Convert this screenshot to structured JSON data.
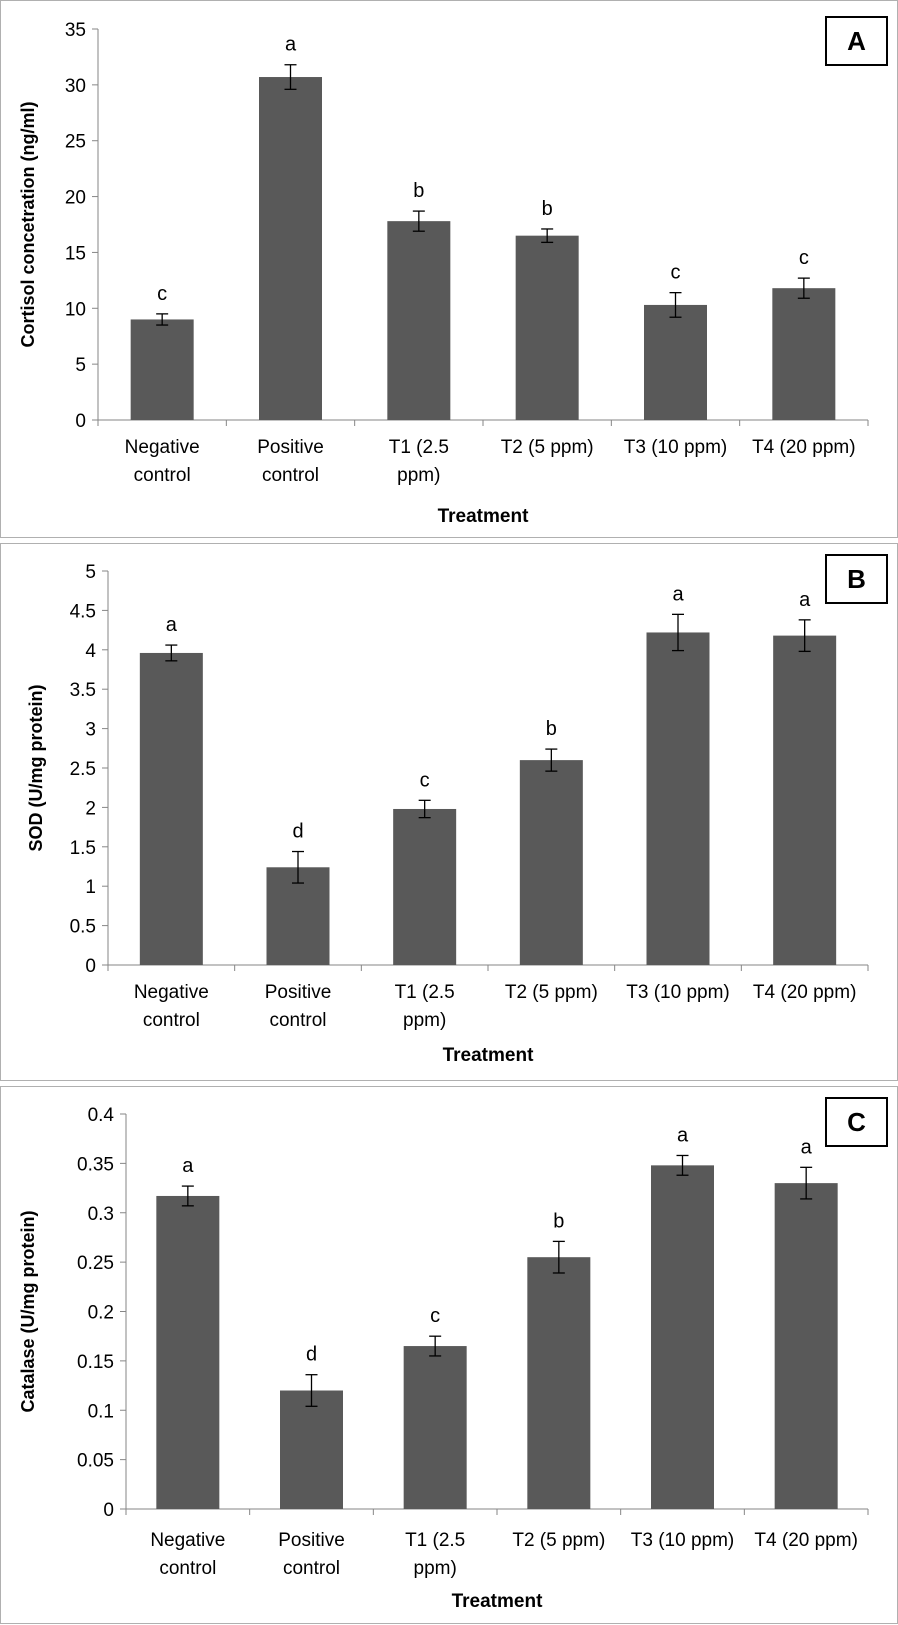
{
  "chart_data": [
    {
      "type": "bar",
      "panel_label": "A",
      "categories": [
        [
          "Negative",
          "control"
        ],
        [
          "Positive",
          "control"
        ],
        [
          "T1 (2.5",
          "ppm)"
        ],
        [
          "T2 (5 ppm)"
        ],
        [
          "T3 (10 ppm)"
        ],
        [
          "T4 (20 ppm)"
        ]
      ],
      "values": [
        9.0,
        30.7,
        17.8,
        16.5,
        10.3,
        11.8
      ],
      "errors": [
        0.5,
        1.1,
        0.9,
        0.6,
        1.1,
        0.9
      ],
      "letters": [
        "c",
        "a",
        "b",
        "b",
        "c",
        "c"
      ],
      "yticks": [
        "0",
        "5",
        "10",
        "15",
        "20",
        "25",
        "30",
        "35"
      ],
      "ylim": [
        0,
        35
      ],
      "xlabel": "Treatment",
      "ylabel": "Cortisol concetration (ng/ml)",
      "bar_color": "#595959"
    },
    {
      "type": "bar",
      "panel_label": "B",
      "categories": [
        [
          "Negative",
          "control"
        ],
        [
          "Positive",
          "control"
        ],
        [
          "T1 (2.5",
          "ppm)"
        ],
        [
          "T2 (5 ppm)"
        ],
        [
          "T3 (10 ppm)"
        ],
        [
          "T4 (20 ppm)"
        ]
      ],
      "values": [
        3.96,
        1.24,
        1.98,
        2.6,
        4.22,
        4.18
      ],
      "errors": [
        0.1,
        0.2,
        0.11,
        0.14,
        0.23,
        0.2
      ],
      "letters": [
        "a",
        "d",
        "c",
        "b",
        "a",
        "a"
      ],
      "yticks": [
        "0",
        "0.5",
        "1",
        "1.5",
        "2",
        "2.5",
        "3",
        "3.5",
        "4",
        "4.5",
        "5"
      ],
      "ylim": [
        0,
        5
      ],
      "xlabel": "Treatment",
      "ylabel": "SOD (U/mg protein)",
      "bar_color": "#595959"
    },
    {
      "type": "bar",
      "panel_label": "C",
      "categories": [
        [
          "Negative",
          "control"
        ],
        [
          "Positive",
          "control"
        ],
        [
          "T1 (2.5",
          "ppm)"
        ],
        [
          "T2 (5 ppm)"
        ],
        [
          "T3 (10 ppm)"
        ],
        [
          "T4 (20 ppm)"
        ]
      ],
      "values": [
        0.317,
        0.12,
        0.165,
        0.255,
        0.348,
        0.33
      ],
      "errors": [
        0.01,
        0.016,
        0.01,
        0.016,
        0.01,
        0.016
      ],
      "letters": [
        "a",
        "d",
        "c",
        "b",
        "a",
        "a"
      ],
      "yticks": [
        "0",
        "0.05",
        "0.1",
        "0.15",
        "0.2",
        "0.25",
        "0.3",
        "0.35",
        "0.4"
      ],
      "ylim": [
        0,
        0.4
      ],
      "xlabel": "Treatment",
      "ylabel": "Catalase (U/mg protein)",
      "bar_color": "#595959"
    }
  ]
}
